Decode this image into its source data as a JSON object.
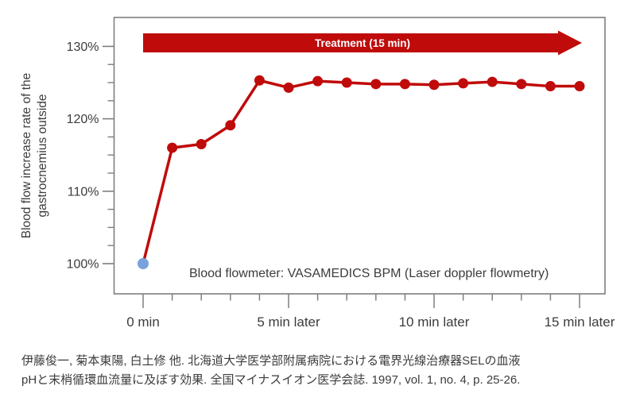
{
  "chart_data": {
    "type": "line",
    "banner_label": "Treatment (15 min)",
    "ylabel_lines": [
      "Blood flow increase rate of the",
      "gastrocnemius outside"
    ],
    "annotation": "Blood flowmeter: VASAMEDICS BPM (Laser doppler flowmetry)",
    "x": [
      0,
      1,
      2,
      3,
      4,
      5,
      6,
      7,
      8,
      9,
      10,
      11,
      12,
      13,
      14,
      15
    ],
    "values": [
      100,
      116.0,
      116.5,
      119.1,
      125.3,
      124.3,
      125.2,
      125.0,
      124.8,
      124.8,
      124.7,
      124.9,
      125.1,
      124.8,
      124.5,
      124.5
    ],
    "y_major_ticks": [
      {
        "v": 100,
        "label": "100%"
      },
      {
        "v": 110,
        "label": "110%"
      },
      {
        "v": 120,
        "label": "120%"
      },
      {
        "v": 130,
        "label": "130%"
      }
    ],
    "y_minor_step": 2.5,
    "y_axis_range": [
      96,
      134
    ],
    "x_major_ticks": [
      {
        "min": 0,
        "label": "0 min"
      },
      {
        "min": 5,
        "label": "5 min later"
      },
      {
        "min": 10,
        "label": "10 min later"
      },
      {
        "min": 15,
        "label": "15 min later"
      }
    ],
    "legend_position": "none",
    "grid": false,
    "colors": {
      "series": "#C00B0B",
      "first_point": "#78A2DC",
      "banner": "#C00B0B",
      "banner_text": "#FFFFFF",
      "axis": "#7F7F7F",
      "text": "#3C3C3C"
    }
  },
  "citation": {
    "line1": "伊藤俊一, 菊本東陽, 白土修 他. 北海道大学医学部附属病院における電界光線治療器SELの血液",
    "line2": "pHと末梢循環血流量に及ぼす効果. 全国マイナスイオン医学会誌. 1997, vol. 1, no. 4, p. 25-26."
  }
}
